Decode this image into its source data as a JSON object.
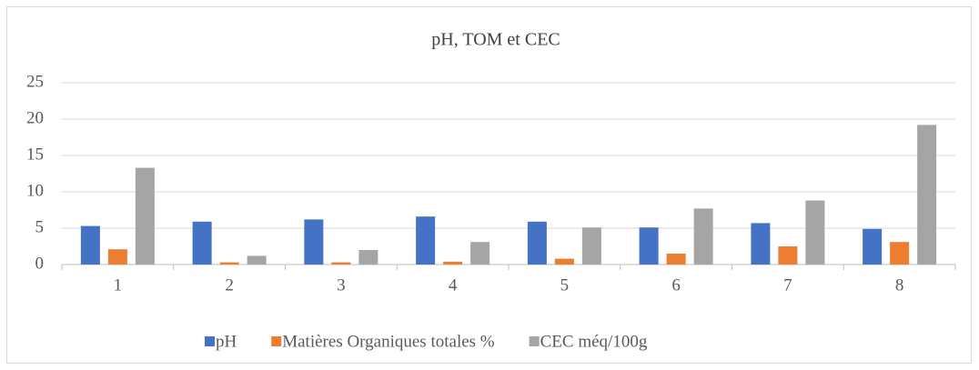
{
  "chart_data": {
    "type": "bar",
    "title": "pH, TOM et CEC",
    "categories": [
      "1",
      "2",
      "3",
      "4",
      "5",
      "6",
      "7",
      "8"
    ],
    "series": [
      {
        "name": "pH",
        "color": "#4472c4",
        "values": [
          5.3,
          5.9,
          6.2,
          6.6,
          5.9,
          5.1,
          5.7,
          4.9
        ]
      },
      {
        "name": "Matières Organiques totales %",
        "color": "#ed7d31",
        "values": [
          2.1,
          0.3,
          0.3,
          0.4,
          0.8,
          1.5,
          2.5,
          3.1
        ]
      },
      {
        "name": "CEC méq/100g",
        "color": "#a5a5a5",
        "values": [
          13.3,
          1.2,
          2.0,
          3.1,
          5.1,
          7.7,
          8.8,
          19.2
        ]
      }
    ],
    "ylim": [
      0,
      25
    ],
    "yticks": [
      0,
      5,
      10,
      15,
      20,
      25
    ],
    "grid": true,
    "legend": "bottom"
  }
}
